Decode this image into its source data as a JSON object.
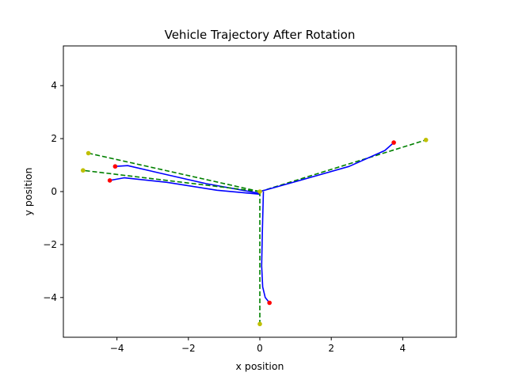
{
  "chart_data": {
    "type": "line",
    "title": "Vehicle Trajectory After Rotation",
    "xlabel": "x position",
    "ylabel": "y position",
    "xlim": [
      -5.5,
      5.5
    ],
    "ylim": [
      -5.5,
      5.5
    ],
    "xticks": [
      -4,
      -2,
      0,
      2,
      4
    ],
    "yticks": [
      -4,
      -2,
      0,
      2,
      4
    ],
    "xtick_labels": [
      "−4",
      "−2",
      "0",
      "2",
      "4"
    ],
    "ytick_labels": [
      "−4",
      "−2",
      "0",
      "2",
      "4"
    ],
    "grid": false,
    "colors": {
      "actual": "#0000ff",
      "reference": "#008000",
      "start_marker": "#ff0000",
      "end_marker": "#bfbf00"
    },
    "trajectories": [
      {
        "actual": [
          [
            0.0,
            0.0
          ],
          [
            1.2,
            0.45
          ],
          [
            2.5,
            0.95
          ],
          [
            3.5,
            1.55
          ],
          [
            3.75,
            1.85
          ]
        ],
        "reference": [
          [
            0.0,
            0.0
          ],
          [
            4.65,
            1.95
          ]
        ],
        "actual_end": [
          3.75,
          1.85
        ],
        "reference_end": [
          4.65,
          1.95
        ]
      },
      {
        "actual": [
          [
            0.0,
            -0.07
          ],
          [
            -1.5,
            0.3
          ],
          [
            -2.8,
            0.7
          ],
          [
            -3.7,
            0.98
          ],
          [
            -4.05,
            0.95
          ]
        ],
        "reference": [
          [
            0.0,
            0.0
          ],
          [
            -4.8,
            1.45
          ]
        ],
        "actual_end": [
          -4.05,
          0.95
        ],
        "reference_end": [
          -4.8,
          1.45
        ]
      },
      {
        "actual": [
          [
            0.0,
            -0.1
          ],
          [
            -1.2,
            0.05
          ],
          [
            -2.6,
            0.35
          ],
          [
            -3.8,
            0.52
          ],
          [
            -4.2,
            0.42
          ]
        ],
        "reference": [
          [
            0.0,
            0.0
          ],
          [
            -4.95,
            0.8
          ]
        ],
        "actual_end": [
          -4.2,
          0.42
        ],
        "reference_end": [
          -4.95,
          0.8
        ]
      },
      {
        "actual": [
          [
            0.1,
            0.0
          ],
          [
            0.07,
            -1.5
          ],
          [
            0.05,
            -2.8
          ],
          [
            0.08,
            -3.6
          ],
          [
            0.15,
            -4.0
          ],
          [
            0.27,
            -4.2
          ]
        ],
        "reference": [
          [
            0.0,
            0.0
          ],
          [
            0.0,
            -5.0
          ]
        ],
        "actual_end": [
          0.27,
          -4.2
        ],
        "reference_end": [
          0.0,
          -5.0
        ]
      }
    ]
  }
}
